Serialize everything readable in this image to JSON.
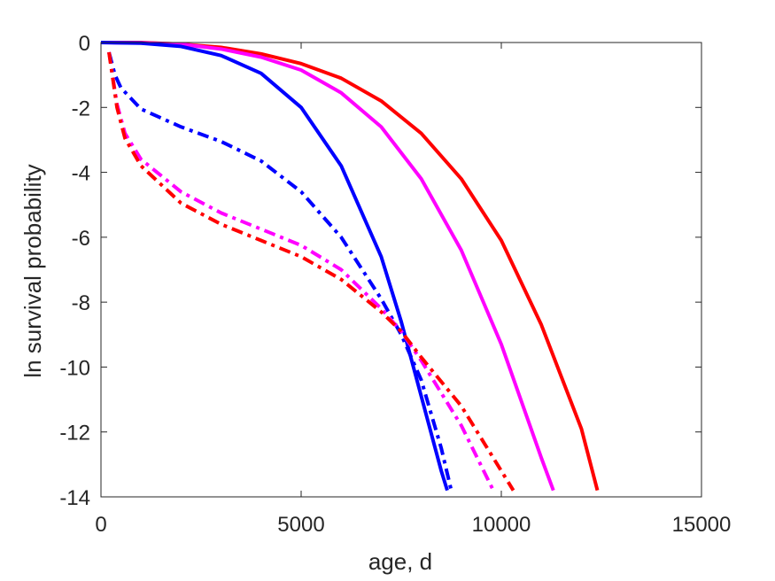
{
  "chart_data": {
    "type": "line",
    "title": "",
    "xlabel": "age, d",
    "ylabel": "ln survival probability",
    "xlim": [
      0,
      15000
    ],
    "ylim": [
      -14,
      0
    ],
    "xticks": [
      0,
      5000,
      10000,
      15000
    ],
    "yticks": [
      0,
      -2,
      -4,
      -6,
      -8,
      -10,
      -12,
      -14
    ],
    "xtick_labels": [
      "0",
      "5000",
      "10000",
      "15000"
    ],
    "ytick_labels": [
      "0",
      "-2",
      "-4",
      "-6",
      "-8",
      "-10",
      "-12",
      "-14"
    ],
    "grid": false,
    "legend": null,
    "series": [
      {
        "color": "#ff0000",
        "style": "solid",
        "x": [
          0,
          1000,
          2000,
          3000,
          4000,
          5000,
          6000,
          7000,
          8000,
          9000,
          10000,
          11000,
          12000,
          12400
        ],
        "y": [
          0,
          0,
          -0.05,
          -0.15,
          -0.35,
          -0.65,
          -1.1,
          -1.8,
          -2.8,
          -4.2,
          -6.1,
          -8.7,
          -11.9,
          -13.8
        ]
      },
      {
        "color": "#ff00ff",
        "style": "solid",
        "x": [
          0,
          1000,
          2000,
          3000,
          4000,
          5000,
          6000,
          7000,
          8000,
          9000,
          10000,
          11000,
          11300
        ],
        "y": [
          0,
          -0.01,
          -0.05,
          -0.2,
          -0.45,
          -0.85,
          -1.55,
          -2.6,
          -4.2,
          -6.4,
          -9.3,
          -12.8,
          -13.8
        ]
      },
      {
        "color": "#0000ff",
        "style": "solid",
        "x": [
          0,
          1000,
          2000,
          3000,
          4000,
          5000,
          6000,
          7000,
          7500,
          8000,
          8500,
          8650
        ],
        "y": [
          0,
          -0.02,
          -0.12,
          -0.4,
          -0.95,
          -2.0,
          -3.8,
          -6.6,
          -8.6,
          -10.9,
          -13.2,
          -13.8
        ]
      },
      {
        "color": "#0000ff",
        "style": "dashdot",
        "x": [
          200,
          350,
          500,
          1000,
          2000,
          3000,
          4000,
          5000,
          6000,
          7000,
          7500,
          8000,
          8500,
          8750
        ],
        "y": [
          -0.3,
          -1.0,
          -1.4,
          -2.05,
          -2.6,
          -3.05,
          -3.65,
          -4.6,
          -6.0,
          -7.9,
          -9.0,
          -10.4,
          -12.5,
          -13.8
        ]
      },
      {
        "color": "#ff00ff",
        "style": "dashdot",
        "x": [
          200,
          400,
          600,
          1000,
          2000,
          3000,
          4000,
          5000,
          6000,
          7000,
          7500,
          8000,
          9000,
          9800
        ],
        "y": [
          -0.3,
          -1.9,
          -2.8,
          -3.6,
          -4.6,
          -5.25,
          -5.75,
          -6.25,
          -7.0,
          -8.2,
          -8.9,
          -9.8,
          -11.8,
          -13.8
        ]
      },
      {
        "color": "#ff0000",
        "style": "dashdot",
        "x": [
          200,
          400,
          600,
          1000,
          2000,
          3000,
          4000,
          5000,
          6000,
          7000,
          7500,
          8000,
          9000,
          10300
        ],
        "y": [
          -0.3,
          -2.0,
          -2.95,
          -3.8,
          -4.95,
          -5.6,
          -6.1,
          -6.6,
          -7.3,
          -8.3,
          -8.9,
          -9.7,
          -11.2,
          -13.8
        ]
      }
    ]
  }
}
